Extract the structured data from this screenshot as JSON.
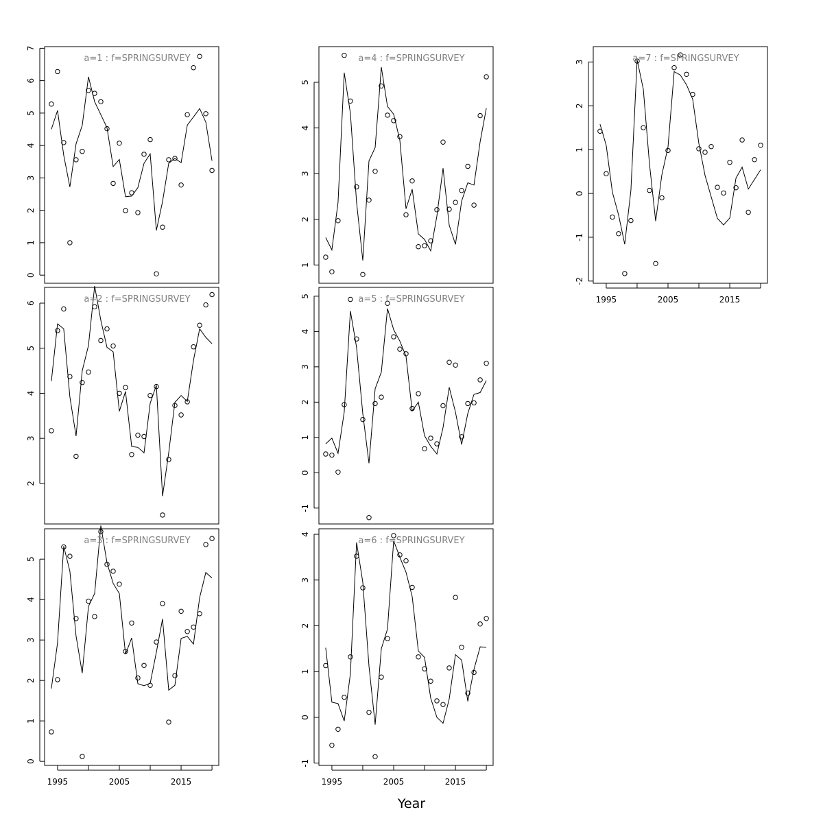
{
  "figure": {
    "xlabel": "Year",
    "strip_color": "#808080",
    "line_color": "#000000"
  },
  "chart_data": [
    {
      "type": "line",
      "title": "a=1  :  f=SPRINGSURVEY",
      "x_ticks": [
        1995,
        2005,
        2015
      ],
      "show_x_ticks": false,
      "y_ticks": [
        0,
        1,
        2,
        3,
        4,
        5,
        6,
        7
      ],
      "ylim": [
        -0.25,
        7.05
      ],
      "xlim": [
        1992.9,
        2021.1
      ],
      "series": [
        {
          "style": "points",
          "x": [
            1994,
            1995,
            1996,
            1997,
            1998,
            1999,
            2000,
            2001,
            2002,
            2003,
            2004,
            2005,
            2006,
            2007,
            2008,
            2009,
            2010,
            2011,
            2012,
            2013,
            2014,
            2015,
            2016,
            2017,
            2018,
            2019,
            2020
          ],
          "values": [
            5.28,
            6.28,
            4.09,
            1.0,
            3.56,
            3.82,
            5.7,
            5.61,
            5.35,
            4.52,
            2.83,
            4.07,
            1.99,
            2.54,
            1.93,
            3.73,
            4.18,
            0.04,
            1.48,
            3.56,
            3.6,
            2.78,
            4.95,
            6.4,
            6.75,
            4.98,
            3.23
          ]
        },
        {
          "style": "line",
          "x": [
            1994,
            1995,
            1996,
            1997,
            1998,
            1999,
            2000,
            2001,
            2002,
            2003,
            2004,
            2005,
            2006,
            2007,
            2008,
            2009,
            2010,
            2011,
            2012,
            2013,
            2014,
            2015,
            2016,
            2017,
            2018,
            2019,
            2020
          ],
          "values": [
            4.5,
            5.08,
            3.7,
            2.72,
            4.05,
            4.62,
            6.12,
            5.35,
            4.95,
            4.55,
            3.35,
            3.57,
            2.42,
            2.44,
            2.7,
            3.45,
            3.74,
            1.38,
            2.27,
            3.45,
            3.6,
            3.47,
            4.63,
            4.88,
            5.14,
            4.72,
            3.53
          ]
        }
      ]
    },
    {
      "type": "line",
      "title": "a=2  :  f=SPRINGSURVEY",
      "x_ticks": [
        1995,
        2005,
        2015
      ],
      "show_x_ticks": false,
      "y_ticks": [
        2,
        3,
        4,
        5,
        6
      ],
      "ylim": [
        1.1,
        6.35
      ],
      "xlim": [
        1992.9,
        2021.1
      ],
      "series": [
        {
          "style": "points",
          "x": [
            1994,
            1995,
            1996,
            1997,
            1998,
            1999,
            2000,
            2001,
            2002,
            2003,
            2004,
            2005,
            2006,
            2007,
            2008,
            2009,
            2010,
            2011,
            2012,
            2013,
            2014,
            2015,
            2016,
            2017,
            2018,
            2019,
            2020
          ],
          "values": [
            3.17,
            5.39,
            5.87,
            4.37,
            2.6,
            4.24,
            4.47,
            5.92,
            5.17,
            5.43,
            5.05,
            4.0,
            4.13,
            2.64,
            3.07,
            3.04,
            3.95,
            4.15,
            1.3,
            2.53,
            3.73,
            3.52,
            3.81,
            5.03,
            5.51,
            5.96,
            6.19
          ]
        },
        {
          "style": "line",
          "x": [
            1994,
            1995,
            1996,
            1997,
            1998,
            1999,
            2000,
            2001,
            2002,
            2003,
            2004,
            2005,
            2006,
            2007,
            2008,
            2009,
            2010,
            2011,
            2012,
            2013,
            2014,
            2015,
            2016,
            2017,
            2018,
            2019,
            2020
          ],
          "values": [
            4.27,
            5.54,
            5.43,
            3.92,
            3.05,
            4.5,
            5.06,
            6.38,
            5.62,
            5.02,
            4.92,
            3.6,
            4.04,
            2.82,
            2.8,
            2.68,
            3.78,
            4.18,
            1.72,
            2.68,
            3.8,
            3.95,
            3.82,
            4.73,
            5.43,
            5.24,
            5.1
          ]
        }
      ]
    },
    {
      "type": "line",
      "title": "a=3  :  f=SPRINGSURVEY",
      "x_ticks": [
        1995,
        2005,
        2015
      ],
      "show_x_ticks": true,
      "y_ticks": [
        0,
        1,
        2,
        3,
        4,
        5
      ],
      "ylim": [
        -0.1,
        5.75
      ],
      "xlim": [
        1992.9,
        2021.1
      ],
      "series": [
        {
          "style": "points",
          "x": [
            1994,
            1995,
            1996,
            1997,
            1998,
            1999,
            2000,
            2001,
            2002,
            2003,
            2004,
            2005,
            2006,
            2007,
            2008,
            2009,
            2010,
            2011,
            2012,
            2013,
            2014,
            2015,
            2016,
            2017,
            2018,
            2019,
            2020
          ],
          "values": [
            0.73,
            2.02,
            5.3,
            5.07,
            3.53,
            0.12,
            3.96,
            3.58,
            5.68,
            4.87,
            4.7,
            4.38,
            2.72,
            3.42,
            2.06,
            2.37,
            1.88,
            2.95,
            3.9,
            0.97,
            2.12,
            3.71,
            3.21,
            3.32,
            3.65,
            5.36,
            5.51
          ]
        },
        {
          "style": "line",
          "x": [
            1994,
            1995,
            1996,
            1997,
            1998,
            1999,
            2000,
            2001,
            2002,
            2003,
            2004,
            2005,
            2006,
            2007,
            2008,
            2009,
            2010,
            2011,
            2012,
            2013,
            2014,
            2015,
            2016,
            2017,
            2018,
            2019,
            2020
          ],
          "values": [
            1.8,
            2.93,
            5.32,
            4.7,
            3.1,
            2.18,
            3.83,
            4.15,
            5.83,
            4.91,
            4.4,
            4.15,
            2.65,
            3.05,
            1.92,
            1.87,
            1.93,
            2.7,
            3.52,
            1.76,
            1.88,
            3.04,
            3.09,
            2.9,
            4.05,
            4.67,
            4.53
          ]
        }
      ]
    },
    {
      "type": "line",
      "title": "a=4  :  f=SPRINGSURVEY",
      "x_ticks": [
        1995,
        2005,
        2015
      ],
      "show_x_ticks": false,
      "y_ticks": [
        1,
        2,
        3,
        4,
        5
      ],
      "ylim": [
        0.6,
        5.78
      ],
      "xlim": [
        1992.9,
        2021.1
      ],
      "series": [
        {
          "style": "points",
          "x": [
            1994,
            1995,
            1996,
            1997,
            1998,
            1999,
            2000,
            2001,
            2002,
            2003,
            2004,
            2005,
            2006,
            2007,
            2008,
            2009,
            2010,
            2011,
            2012,
            2013,
            2014,
            2015,
            2016,
            2017,
            2018,
            2019,
            2020
          ],
          "values": [
            1.17,
            0.85,
            1.97,
            5.59,
            4.59,
            2.71,
            0.79,
            2.42,
            3.05,
            4.92,
            4.28,
            4.16,
            3.81,
            2.1,
            2.84,
            1.4,
            1.42,
            1.53,
            2.21,
            3.69,
            2.22,
            2.37,
            2.63,
            3.16,
            2.31,
            4.27,
            5.12
          ]
        },
        {
          "style": "line",
          "x": [
            1994,
            1995,
            1996,
            1997,
            1998,
            1999,
            2000,
            2001,
            2002,
            2003,
            2004,
            2005,
            2006,
            2007,
            2008,
            2009,
            2010,
            2011,
            2012,
            2013,
            2014,
            2015,
            2016,
            2017,
            2018,
            2019,
            2020
          ],
          "values": [
            1.6,
            1.33,
            2.37,
            5.21,
            4.32,
            2.37,
            1.1,
            3.28,
            3.57,
            5.33,
            4.47,
            4.3,
            3.73,
            2.23,
            2.66,
            1.68,
            1.56,
            1.31,
            2.07,
            3.12,
            1.87,
            1.45,
            2.4,
            2.8,
            2.75,
            3.7,
            4.43
          ]
        }
      ]
    },
    {
      "type": "line",
      "title": "a=5  :  f=SPRINGSURVEY",
      "x_ticks": [
        1995,
        2005,
        2015
      ],
      "show_x_ticks": false,
      "y_ticks": [
        -1,
        0,
        1,
        2,
        3,
        4,
        5
      ],
      "ylim": [
        -1.45,
        5.25
      ],
      "xlim": [
        1992.9,
        2021.1
      ],
      "series": [
        {
          "style": "points",
          "x": [
            1994,
            1995,
            1996,
            1997,
            1998,
            1999,
            2000,
            2001,
            2002,
            2003,
            2004,
            2005,
            2006,
            2007,
            2008,
            2009,
            2010,
            2011,
            2012,
            2013,
            2014,
            2015,
            2016,
            2017,
            2018,
            2019,
            2020
          ],
          "values": [
            0.53,
            0.5,
            0.02,
            1.93,
            4.91,
            3.79,
            1.51,
            -1.27,
            1.96,
            2.14,
            4.8,
            3.85,
            3.5,
            3.37,
            1.82,
            2.24,
            0.68,
            0.98,
            0.82,
            1.9,
            3.13,
            3.05,
            1.02,
            1.96,
            1.98,
            2.63,
            3.1
          ]
        },
        {
          "style": "line",
          "x": [
            1994,
            1995,
            1996,
            1997,
            1998,
            1999,
            2000,
            2001,
            2002,
            2003,
            2004,
            2005,
            2006,
            2007,
            2008,
            2009,
            2010,
            2011,
            2012,
            2013,
            2014,
            2015,
            2016,
            2017,
            2018,
            2019,
            2020
          ],
          "values": [
            0.82,
            0.98,
            0.55,
            1.72,
            4.58,
            3.55,
            1.67,
            0.27,
            2.38,
            2.85,
            4.65,
            4.05,
            3.73,
            3.3,
            1.75,
            2.0,
            1.05,
            0.75,
            0.53,
            1.28,
            2.42,
            1.72,
            0.8,
            1.68,
            2.22,
            2.27,
            2.61
          ]
        }
      ]
    },
    {
      "type": "line",
      "title": "a=6  :  f=SPRINGSURVEY",
      "x_ticks": [
        1995,
        2005,
        2015
      ],
      "show_x_ticks": true,
      "y_ticks": [
        -1,
        0,
        1,
        2,
        3,
        4
      ],
      "ylim": [
        -1.05,
        4.12
      ],
      "xlim": [
        1992.9,
        2021.1
      ],
      "series": [
        {
          "style": "points",
          "x": [
            1994,
            1995,
            1996,
            1997,
            1998,
            1999,
            2000,
            2001,
            2002,
            2003,
            2004,
            2005,
            2006,
            2007,
            2008,
            2009,
            2010,
            2011,
            2012,
            2013,
            2014,
            2015,
            2016,
            2017,
            2018,
            2019,
            2020
          ],
          "values": [
            1.13,
            -0.61,
            -0.26,
            0.44,
            1.32,
            3.52,
            2.83,
            0.11,
            -0.86,
            0.88,
            1.72,
            3.97,
            3.55,
            3.42,
            2.84,
            1.32,
            1.06,
            0.79,
            0.36,
            0.28,
            1.08,
            2.62,
            1.53,
            0.53,
            0.98,
            2.04,
            2.16
          ]
        },
        {
          "style": "line",
          "x": [
            1994,
            1995,
            1996,
            1997,
            1998,
            1999,
            2000,
            2001,
            2002,
            2003,
            2004,
            2005,
            2006,
            2007,
            2008,
            2009,
            2010,
            2011,
            2012,
            2013,
            2014,
            2015,
            2016,
            2017,
            2018,
            2019,
            2020
          ],
          "values": [
            1.52,
            0.33,
            0.3,
            -0.08,
            0.95,
            3.82,
            2.95,
            1.12,
            -0.16,
            1.5,
            1.93,
            3.86,
            3.5,
            3.17,
            2.64,
            1.45,
            1.31,
            0.42,
            0.0,
            -0.13,
            0.4,
            1.37,
            1.25,
            0.35,
            1.05,
            1.54,
            1.53
          ]
        }
      ]
    },
    {
      "type": "line",
      "title": "a=7  :  f=SPRINGSURVEY",
      "x_ticks": [
        1995,
        2005,
        2015
      ],
      "show_x_ticks": true,
      "y_ticks": [
        -2,
        -1,
        0,
        1,
        2,
        3
      ],
      "ylim": [
        -2.05,
        3.35
      ],
      "xlim": [
        1992.9,
        2021.1
      ],
      "series": [
        {
          "style": "points",
          "x": [
            1994,
            1995,
            1996,
            1997,
            1998,
            1999,
            2000,
            2001,
            2002,
            2003,
            2004,
            2005,
            2006,
            2007,
            2008,
            2009,
            2010,
            2011,
            2012,
            2013,
            2014,
            2015,
            2016,
            2017,
            2018,
            2019,
            2020
          ],
          "values": [
            1.42,
            0.45,
            -0.54,
            -0.92,
            -1.83,
            -0.62,
            3.02,
            1.5,
            0.07,
            -1.6,
            -0.1,
            0.98,
            2.87,
            3.16,
            2.72,
            2.26,
            1.02,
            0.94,
            1.07,
            0.14,
            0.01,
            0.71,
            0.13,
            1.22,
            -0.43,
            0.77,
            1.1
          ]
        },
        {
          "style": "line",
          "x": [
            1994,
            1995,
            1996,
            1997,
            1998,
            1999,
            2000,
            2001,
            2002,
            2003,
            2004,
            2005,
            2006,
            2007,
            2008,
            2009,
            2010,
            2011,
            2012,
            2013,
            2014,
            2015,
            2016,
            2017,
            2018,
            2019,
            2020
          ],
          "values": [
            1.58,
            1.1,
            0.03,
            -0.49,
            -1.16,
            0.07,
            3.05,
            2.38,
            0.67,
            -0.63,
            0.42,
            1.06,
            2.78,
            2.7,
            2.48,
            2.15,
            1.14,
            0.41,
            -0.08,
            -0.57,
            -0.72,
            -0.56,
            0.35,
            0.6,
            0.1,
            0.32,
            0.54
          ]
        }
      ]
    }
  ]
}
